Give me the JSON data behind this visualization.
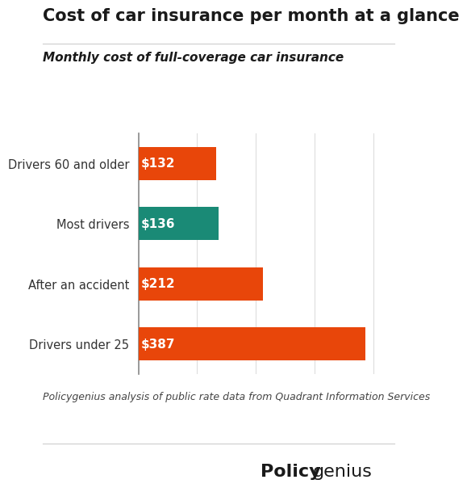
{
  "title": "Cost of car insurance per month at a glance",
  "subtitle": "Monthly cost of full-coverage car insurance",
  "categories": [
    "Drivers 60 and older",
    "Most drivers",
    "After an accident",
    "Drivers under 25"
  ],
  "values": [
    132,
    136,
    212,
    387
  ],
  "bar_colors": [
    "#E8460A",
    "#1A8A76",
    "#E8460A",
    "#E8460A"
  ],
  "labels": [
    "$132",
    "$136",
    "$212",
    "$387"
  ],
  "footnote": "Policygenius analysis of public rate data from Quadrant Information Services",
  "background_color": "#FFFFFF",
  "xlim": [
    0,
    430
  ],
  "title_fontsize": 15,
  "subtitle_fontsize": 11,
  "label_fontsize": 11,
  "category_fontsize": 10.5,
  "footnote_fontsize": 9,
  "bar_label_color": "#FFFFFF",
  "grid_color": "#DDDDDD",
  "text_color": "#1a1a1a"
}
